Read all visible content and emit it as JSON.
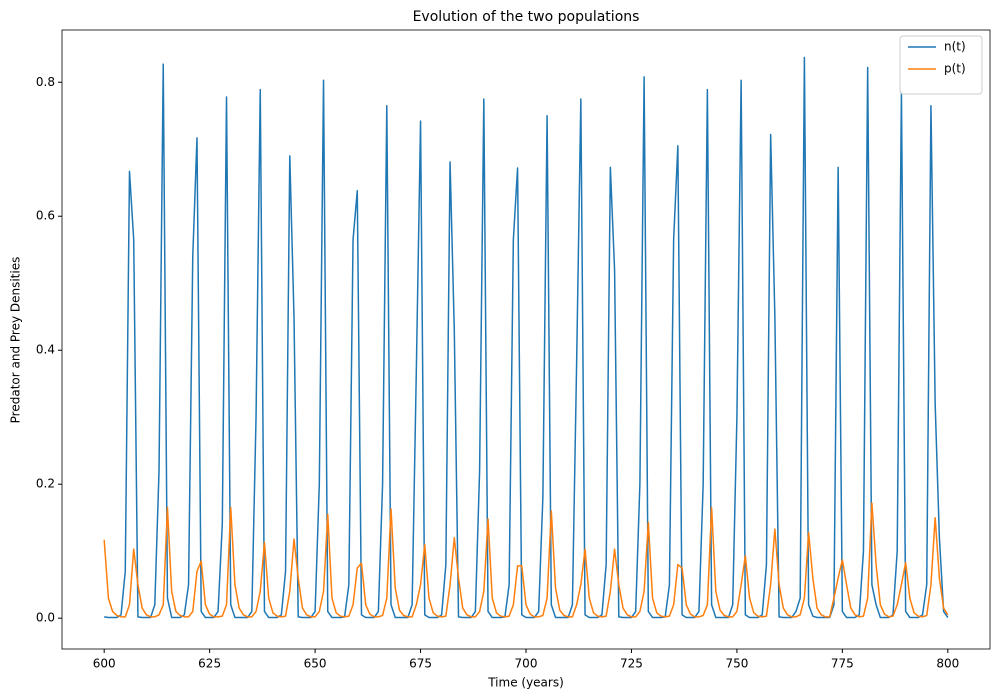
{
  "chart_data": {
    "type": "line",
    "title": "Evolution of the two populations",
    "x_label": "Time (years)",
    "y_label": "Predator and Prey Densities",
    "x": [
      600,
      601,
      602,
      603,
      604,
      605,
      606,
      607,
      608,
      609,
      610,
      611,
      612,
      613,
      614,
      615,
      616,
      617,
      618,
      619,
      620,
      621,
      622,
      623,
      624,
      625,
      626,
      627,
      628,
      629,
      630,
      631,
      632,
      633,
      634,
      635,
      636,
      637,
      638,
      639,
      640,
      641,
      642,
      643,
      644,
      645,
      646,
      647,
      648,
      649,
      650,
      651,
      652,
      653,
      654,
      655,
      656,
      657,
      658,
      659,
      660,
      661,
      662,
      663,
      664,
      665,
      666,
      667,
      668,
      669,
      670,
      671,
      672,
      673,
      674,
      675,
      676,
      677,
      678,
      679,
      680,
      681,
      682,
      683,
      684,
      685,
      686,
      687,
      688,
      689,
      690,
      691,
      692,
      693,
      694,
      695,
      696,
      697,
      698,
      699,
      700,
      701,
      702,
      703,
      704,
      705,
      706,
      707,
      708,
      709,
      710,
      711,
      712,
      713,
      714,
      715,
      716,
      717,
      718,
      719,
      720,
      721,
      722,
      723,
      724,
      725,
      726,
      727,
      728,
      729,
      730,
      731,
      732,
      733,
      734,
      735,
      736,
      737,
      738,
      739,
      740,
      741,
      742,
      743,
      744,
      745,
      746,
      747,
      748,
      749,
      750,
      751,
      752,
      753,
      754,
      755,
      756,
      757,
      758,
      759,
      760,
      761,
      762,
      763,
      764,
      765,
      766,
      767,
      768,
      769,
      770,
      771,
      772,
      773,
      774,
      775,
      776,
      777,
      778,
      779,
      780,
      781,
      782,
      783,
      784,
      785,
      786,
      787,
      788,
      789,
      790,
      791,
      792,
      793,
      794,
      795,
      796,
      797,
      798,
      799,
      800
    ],
    "series": [
      {
        "name": "n(t)",
        "color": "#1f77b4",
        "values": [
          0.002,
          0.001,
          0.001,
          0.001,
          0.005,
          0.07,
          0.667,
          0.565,
          0.002,
          0.001,
          0.001,
          0.001,
          0.02,
          0.22,
          0.827,
          0.03,
          0.001,
          0.001,
          0.001,
          0.005,
          0.05,
          0.54,
          0.717,
          0.01,
          0.001,
          0.001,
          0.001,
          0.01,
          0.14,
          0.778,
          0.02,
          0.001,
          0.001,
          0.001,
          0.001,
          0.01,
          0.3,
          0.789,
          0.01,
          0.001,
          0.001,
          0.001,
          0.005,
          0.07,
          0.69,
          0.45,
          0.002,
          0.001,
          0.001,
          0.001,
          0.01,
          0.2,
          0.803,
          0.01,
          0.001,
          0.001,
          0.001,
          0.002,
          0.05,
          0.565,
          0.638,
          0.005,
          0.001,
          0.001,
          0.001,
          0.01,
          0.2,
          0.765,
          0.02,
          0.001,
          0.001,
          0.001,
          0.001,
          0.02,
          0.37,
          0.742,
          0.005,
          0.001,
          0.001,
          0.001,
          0.005,
          0.08,
          0.681,
          0.43,
          0.002,
          0.001,
          0.001,
          0.001,
          0.01,
          0.22,
          0.775,
          0.01,
          0.001,
          0.001,
          0.001,
          0.002,
          0.05,
          0.565,
          0.672,
          0.005,
          0.001,
          0.001,
          0.001,
          0.01,
          0.18,
          0.75,
          0.02,
          0.001,
          0.001,
          0.001,
          0.001,
          0.02,
          0.38,
          0.775,
          0.005,
          0.001,
          0.001,
          0.001,
          0.005,
          0.08,
          0.673,
          0.52,
          0.002,
          0.001,
          0.001,
          0.001,
          0.01,
          0.2,
          0.808,
          0.01,
          0.001,
          0.001,
          0.001,
          0.002,
          0.05,
          0.565,
          0.705,
          0.005,
          0.001,
          0.001,
          0.001,
          0.01,
          0.2,
          0.789,
          0.02,
          0.001,
          0.001,
          0.001,
          0.001,
          0.02,
          0.3,
          0.803,
          0.005,
          0.001,
          0.001,
          0.001,
          0.005,
          0.08,
          0.722,
          0.45,
          0.002,
          0.001,
          0.001,
          0.001,
          0.01,
          0.03,
          0.837,
          0.02,
          0.003,
          0.001,
          0.001,
          0.001,
          0.001,
          0.02,
          0.673,
          0.01,
          0.001,
          0.001,
          0.001,
          0.005,
          0.1,
          0.822,
          0.05,
          0.02,
          0.001,
          0.001,
          0.001,
          0.005,
          0.1,
          0.785,
          0.01,
          0.001,
          0.001,
          0.001,
          0.005,
          0.05,
          0.765,
          0.32,
          0.12,
          0.01,
          0.001
        ]
      },
      {
        "name": "p(t)",
        "color": "#ff7f0e",
        "values": [
          0.117,
          0.03,
          0.01,
          0.004,
          0.002,
          0.002,
          0.02,
          0.103,
          0.05,
          0.015,
          0.005,
          0.002,
          0.002,
          0.005,
          0.02,
          0.165,
          0.04,
          0.01,
          0.004,
          0.002,
          0.002,
          0.01,
          0.07,
          0.085,
          0.02,
          0.006,
          0.002,
          0.002,
          0.003,
          0.02,
          0.165,
          0.05,
          0.015,
          0.005,
          0.002,
          0.002,
          0.01,
          0.04,
          0.113,
          0.03,
          0.008,
          0.003,
          0.002,
          0.003,
          0.04,
          0.118,
          0.06,
          0.015,
          0.005,
          0.002,
          0.002,
          0.01,
          0.04,
          0.155,
          0.03,
          0.008,
          0.003,
          0.002,
          0.003,
          0.02,
          0.075,
          0.082,
          0.02,
          0.006,
          0.002,
          0.002,
          0.004,
          0.03,
          0.163,
          0.045,
          0.012,
          0.004,
          0.002,
          0.002,
          0.02,
          0.05,
          0.11,
          0.03,
          0.008,
          0.003,
          0.002,
          0.003,
          0.05,
          0.12,
          0.06,
          0.015,
          0.005,
          0.002,
          0.002,
          0.01,
          0.04,
          0.148,
          0.03,
          0.008,
          0.003,
          0.002,
          0.003,
          0.02,
          0.078,
          0.078,
          0.02,
          0.006,
          0.002,
          0.002,
          0.004,
          0.03,
          0.16,
          0.045,
          0.012,
          0.004,
          0.002,
          0.002,
          0.02,
          0.05,
          0.103,
          0.03,
          0.008,
          0.003,
          0.002,
          0.003,
          0.04,
          0.103,
          0.05,
          0.015,
          0.005,
          0.002,
          0.002,
          0.01,
          0.04,
          0.143,
          0.03,
          0.008,
          0.003,
          0.002,
          0.003,
          0.02,
          0.08,
          0.075,
          0.02,
          0.006,
          0.002,
          0.002,
          0.004,
          0.02,
          0.165,
          0.04,
          0.012,
          0.004,
          0.002,
          0.002,
          0.01,
          0.05,
          0.093,
          0.03,
          0.008,
          0.003,
          0.002,
          0.003,
          0.05,
          0.133,
          0.05,
          0.015,
          0.005,
          0.002,
          0.002,
          0.005,
          0.03,
          0.128,
          0.06,
          0.015,
          0.005,
          0.002,
          0.002,
          0.03,
          0.06,
          0.087,
          0.05,
          0.015,
          0.005,
          0.002,
          0.003,
          0.03,
          0.172,
          0.08,
          0.02,
          0.006,
          0.002,
          0.003,
          0.02,
          0.05,
          0.083,
          0.03,
          0.008,
          0.003,
          0.002,
          0.004,
          0.05,
          0.15,
          0.06,
          0.015,
          0.005
        ]
      }
    ],
    "xlim": [
      590,
      810
    ],
    "ylim": [
      -0.046,
      0.878
    ],
    "xticks": [
      600,
      625,
      650,
      675,
      700,
      725,
      750,
      775,
      800
    ],
    "yticks": [
      {
        "value": 0,
        "label": "0.0"
      },
      0.2,
      0.4,
      0.6,
      0.8
    ],
    "legend": "upper right"
  }
}
